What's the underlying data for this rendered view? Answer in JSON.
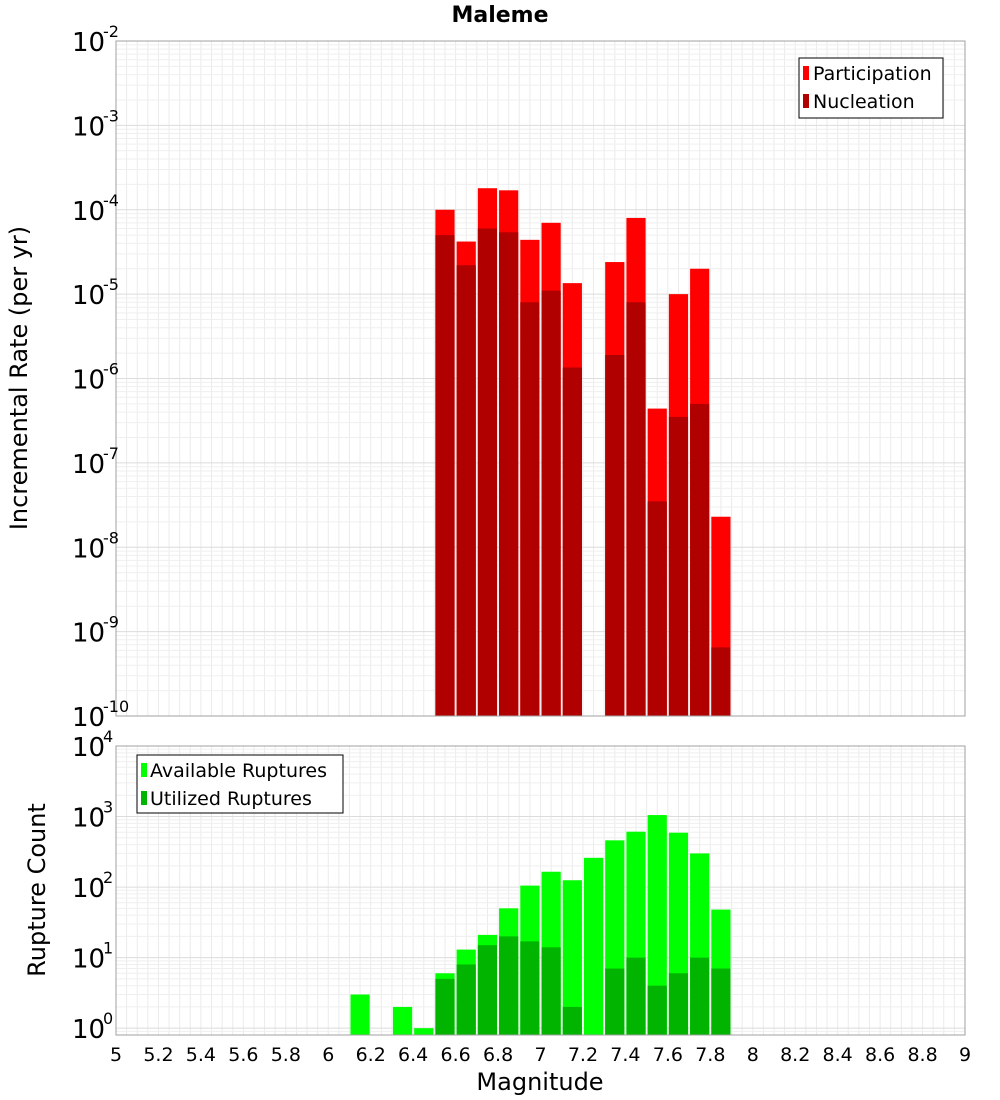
{
  "chart_data": [
    {
      "type": "bar",
      "title": "Maleme",
      "xlabel": "Magnitude",
      "ylabel": "Incremental Rate (per yr)",
      "yscale": "log",
      "xlim": [
        5,
        9
      ],
      "ylim": [
        1e-10,
        0.01
      ],
      "y_tick_exponents": [
        -10,
        -9,
        -8,
        -7,
        -6,
        -5,
        -4,
        -3,
        -2
      ],
      "x": [
        6.55,
        6.65,
        6.75,
        6.85,
        6.95,
        7.05,
        7.15,
        7.35,
        7.45,
        7.55,
        7.65,
        7.75,
        7.85
      ],
      "series": [
        {
          "name": "Participation",
          "color": "#ff0000",
          "values": [
            0.0001,
            4.2e-05,
            0.00018,
            0.00017,
            4.4e-05,
            7e-05,
            1.35e-05,
            2.4e-05,
            8e-05,
            4.4e-07,
            1e-05,
            2e-05,
            2.3e-08
          ]
        },
        {
          "name": "Nucleation",
          "color": "#b00000",
          "values": [
            5e-05,
            2.2e-05,
            6e-05,
            5.4e-05,
            8e-06,
            1.1e-05,
            1.35e-06,
            1.9e-06,
            8e-06,
            3.5e-08,
            3.5e-07,
            5e-07,
            6.5e-10
          ]
        }
      ],
      "legend_position": "top-right",
      "grid": true
    },
    {
      "type": "bar",
      "title": "",
      "xlabel": "Magnitude",
      "ylabel": "Rupture Count",
      "yscale": "log",
      "xlim": [
        5,
        9
      ],
      "ylim": [
        0.8,
        10000
      ],
      "y_tick_exponents": [
        0,
        1,
        2,
        3,
        4
      ],
      "x_ticks": [
        "5",
        "5.2",
        "5.4",
        "5.6",
        "5.8",
        "6",
        "6.2",
        "6.4",
        "6.6",
        "6.8",
        "7",
        "7.2",
        "7.4",
        "7.6",
        "7.8",
        "8",
        "8.2",
        "8.4",
        "8.6",
        "8.8",
        "9"
      ],
      "x": [
        6.15,
        6.35,
        6.45,
        6.55,
        6.65,
        6.75,
        6.85,
        6.95,
        7.05,
        7.15,
        7.25,
        7.35,
        7.45,
        7.55,
        7.65,
        7.75,
        7.85
      ],
      "series": [
        {
          "name": "Available Ruptures",
          "color": "#00ff00",
          "values": [
            3,
            2,
            1,
            6,
            13,
            21,
            50,
            105,
            165,
            125,
            260,
            460,
            610,
            1050,
            590,
            300,
            48
          ]
        },
        {
          "name": "Utilized Ruptures",
          "color": "#00b400",
          "values": [
            0,
            0,
            0,
            5,
            8,
            15,
            20,
            17,
            14,
            2,
            0,
            7,
            10,
            4,
            6,
            10,
            7
          ]
        }
      ],
      "legend_position": "top-left",
      "grid": true
    }
  ]
}
